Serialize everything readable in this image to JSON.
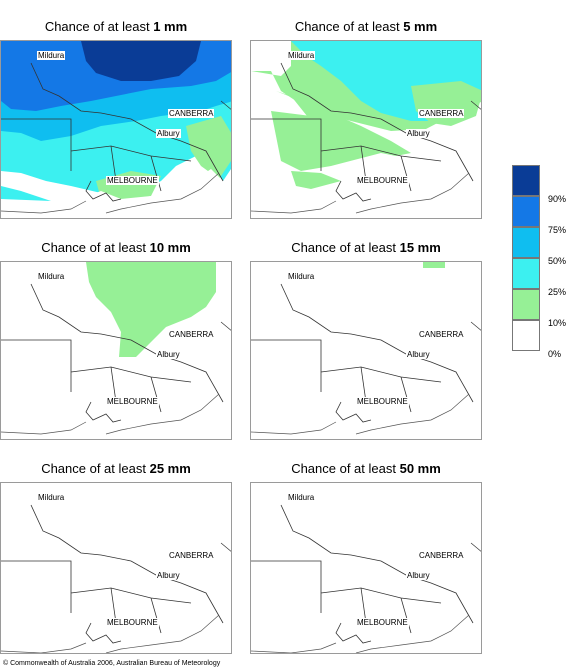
{
  "panels": [
    {
      "prefix": "Chance of at least ",
      "value": "1 mm"
    },
    {
      "prefix": "Chance of at least ",
      "value": "5 mm"
    },
    {
      "prefix": "Chance of at least ",
      "value": "10 mm"
    },
    {
      "prefix": "Chance of at least ",
      "value": "15 mm"
    },
    {
      "prefix": "Chance of at least ",
      "value": "25 mm"
    },
    {
      "prefix": "Chance of at least ",
      "value": "50 mm"
    }
  ],
  "places": {
    "mildura": "Mildura",
    "canberra": "CANBERRA",
    "albury": "Albury",
    "melbourne": "MELBOURNE"
  },
  "legend": [
    {
      "label": "90%",
      "color": "#0a3c96"
    },
    {
      "label": "75%",
      "color": "#1478e6"
    },
    {
      "label": "50%",
      "color": "#0fbef0"
    },
    {
      "label": "25%",
      "color": "#3cf0f0"
    },
    {
      "label": "10%",
      "color": "#96f096"
    },
    {
      "label": "0%",
      "color": "#ffffff"
    }
  ],
  "footer": "© Commonwealth of Australia 2006, Australian Bureau of Meteorology"
}
